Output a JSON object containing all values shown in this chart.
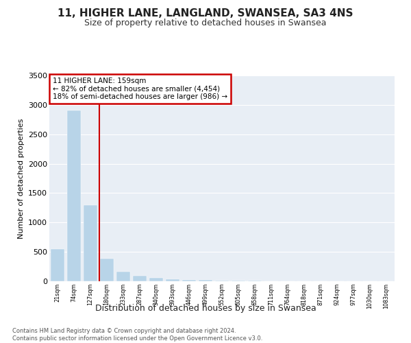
{
  "title": "11, HIGHER LANE, LANGLAND, SWANSEA, SA3 4NS",
  "subtitle": "Size of property relative to detached houses in Swansea",
  "xlabel": "Distribution of detached houses by size in Swansea",
  "ylabel": "Number of detached properties",
  "footer_line1": "Contains HM Land Registry data © Crown copyright and database right 2024.",
  "footer_line2": "Contains public sector information licensed under the Open Government Licence v3.0.",
  "property_size": 159,
  "annotation_line1": "11 HIGHER LANE: 159sqm",
  "annotation_line2": "← 82% of detached houses are smaller (4,454)",
  "annotation_line3": "18% of semi-detached houses are larger (986) →",
  "bar_color": "#b8d4e8",
  "vline_color": "#cc0000",
  "annotation_box_edge_color": "#cc0000",
  "background_color": "#e8eef5",
  "categories": [
    "21sqm",
    "74sqm",
    "127sqm",
    "180sqm",
    "233sqm",
    "287sqm",
    "340sqm",
    "393sqm",
    "446sqm",
    "499sqm",
    "552sqm",
    "605sqm",
    "658sqm",
    "711sqm",
    "764sqm",
    "818sqm",
    "871sqm",
    "924sqm",
    "977sqm",
    "1030sqm",
    "1083sqm"
  ],
  "bin_edges": [
    21,
    74,
    127,
    180,
    233,
    287,
    340,
    393,
    446,
    499,
    552,
    605,
    658,
    711,
    764,
    818,
    871,
    924,
    977,
    1030,
    1083,
    1136
  ],
  "values": [
    550,
    2900,
    1300,
    380,
    165,
    90,
    55,
    35,
    20,
    18,
    10,
    8,
    6,
    5,
    4,
    3,
    2,
    2,
    2,
    1,
    1
  ],
  "ylim": [
    0,
    3500
  ],
  "yticks": [
    0,
    500,
    1000,
    1500,
    2000,
    2500,
    3000,
    3500
  ]
}
